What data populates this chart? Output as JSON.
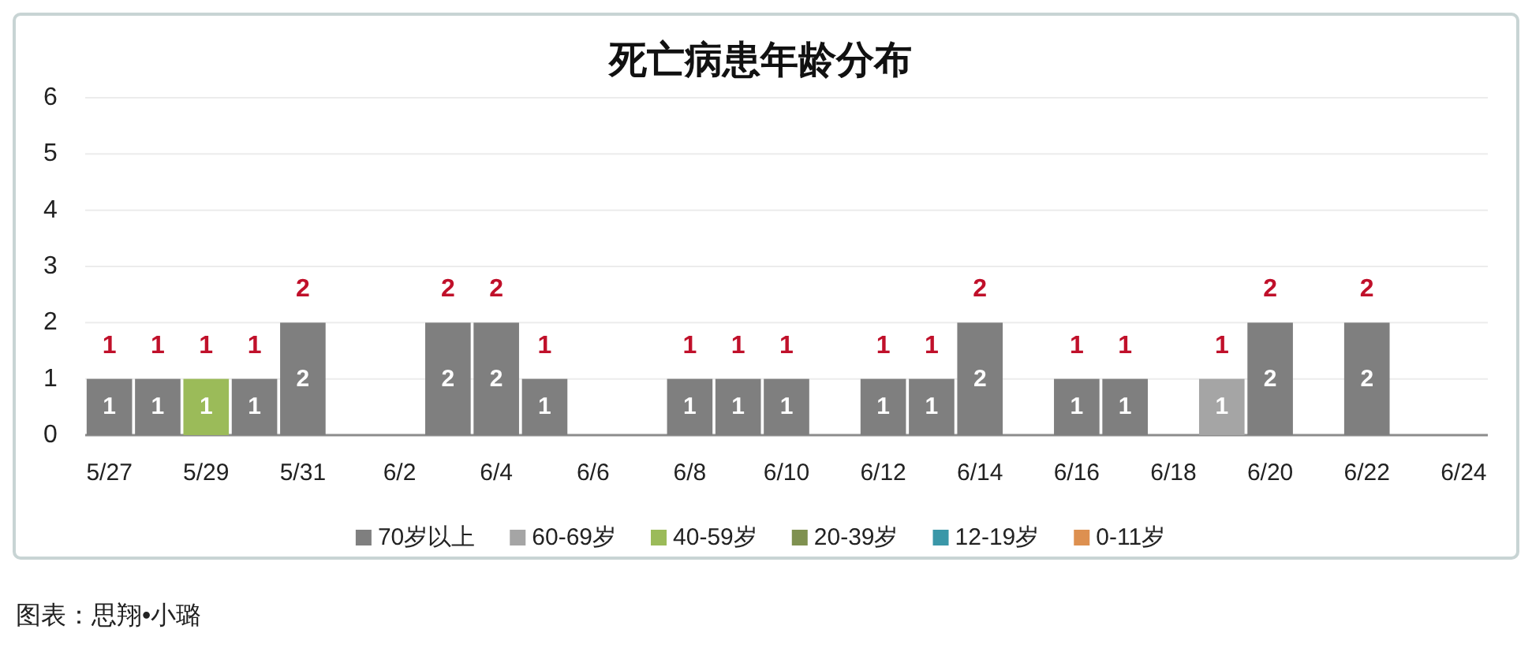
{
  "chart_data": {
    "type": "bar",
    "title": "死亡病患年龄分布",
    "categories": [
      "5/27",
      null,
      "5/29",
      null,
      "5/31",
      null,
      "6/2",
      null,
      "6/4",
      null,
      "6/6",
      null,
      "6/8",
      null,
      "6/10",
      null,
      "6/12",
      null,
      "6/14",
      null,
      "6/16",
      null,
      "6/18",
      null,
      "6/20",
      null,
      "6/22",
      null,
      "6/24"
    ],
    "series": [
      {
        "name": "70岁以上",
        "color": "#7f7f7f",
        "values": [
          1,
          1,
          null,
          1,
          2,
          null,
          null,
          2,
          2,
          1,
          null,
          null,
          1,
          1,
          1,
          null,
          1,
          1,
          2,
          null,
          1,
          1,
          null,
          null,
          2,
          null,
          2,
          null,
          null
        ]
      },
      {
        "name": "60-69岁",
        "color": "#a5a5a5",
        "values": [
          null,
          null,
          null,
          null,
          null,
          null,
          null,
          null,
          null,
          null,
          null,
          null,
          null,
          null,
          null,
          null,
          null,
          null,
          null,
          null,
          null,
          null,
          null,
          1,
          null,
          null,
          null,
          null,
          null
        ]
      },
      {
        "name": "40-59岁",
        "color": "#9bbb59",
        "values": [
          null,
          null,
          1,
          null,
          null,
          null,
          null,
          null,
          null,
          null,
          null,
          null,
          null,
          null,
          null,
          null,
          null,
          null,
          null,
          null,
          null,
          null,
          null,
          null,
          null,
          null,
          null,
          null,
          null
        ]
      },
      {
        "name": "20-39岁",
        "color": "#7f9150",
        "values": [
          null,
          null,
          null,
          null,
          null,
          null,
          null,
          null,
          null,
          null,
          null,
          null,
          null,
          null,
          null,
          null,
          null,
          null,
          null,
          null,
          null,
          null,
          null,
          null,
          null,
          null,
          null,
          null,
          null
        ]
      },
      {
        "name": "12-19岁",
        "color": "#3a97a8",
        "values": [
          null,
          null,
          null,
          null,
          null,
          null,
          null,
          null,
          null,
          null,
          null,
          null,
          null,
          null,
          null,
          null,
          null,
          null,
          null,
          null,
          null,
          null,
          null,
          null,
          null,
          null,
          null,
          null,
          null
        ]
      },
      {
        "name": "0-11岁",
        "color": "#dd9050",
        "values": [
          null,
          null,
          null,
          null,
          null,
          null,
          null,
          null,
          null,
          null,
          null,
          null,
          null,
          null,
          null,
          null,
          null,
          null,
          null,
          null,
          null,
          null,
          null,
          null,
          null,
          null,
          null,
          null,
          null
        ]
      }
    ],
    "stacked": true,
    "ylim": [
      0,
      6
    ],
    "yticks": [
      0,
      1,
      2,
      3,
      4,
      5,
      6
    ],
    "grid": "y",
    "legend": "bottom",
    "data_labels": true,
    "totals": [
      "1",
      "1",
      "1",
      "1",
      "2",
      null,
      null,
      "2",
      "2",
      "1",
      null,
      null,
      "1",
      "1",
      "1",
      null,
      "1",
      "1",
      "2",
      null,
      "1",
      "1",
      null,
      "1",
      "2",
      null,
      "2",
      null,
      null
    ],
    "annotations": [
      "图表：思翔•小璐"
    ]
  }
}
